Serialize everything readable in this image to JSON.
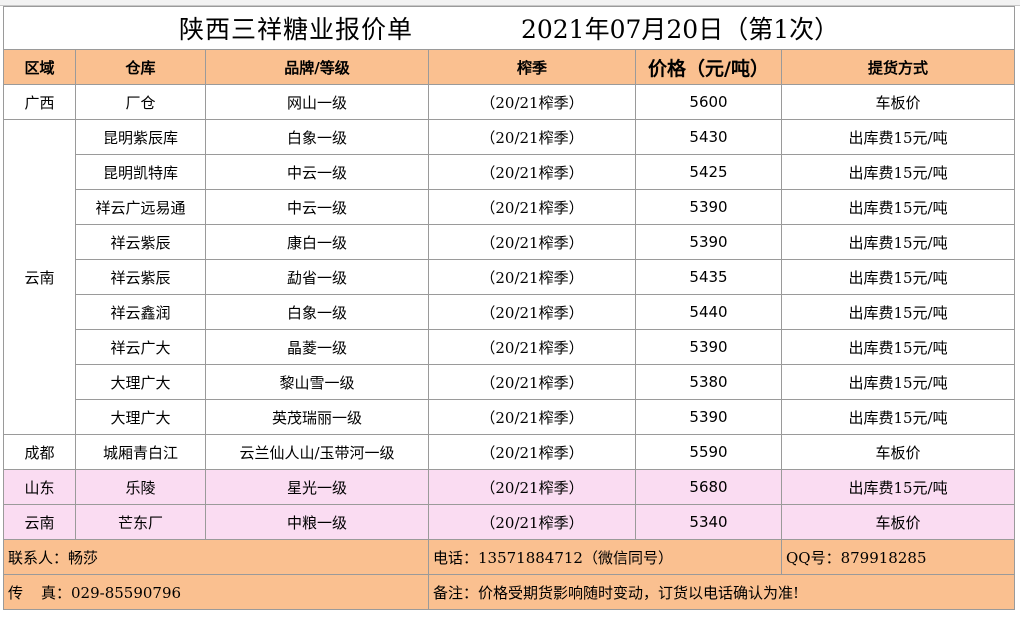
{
  "title": {
    "name": "陕西三祥糖业报价单",
    "date": "2021年07月20日（第1次）"
  },
  "headers": {
    "region": "区域",
    "warehouse": "仓库",
    "brand": "品牌/等级",
    "season": "榨季",
    "price": "价格（元/吨）",
    "delivery": "提货方式"
  },
  "regions": {
    "guangxi": "广西",
    "yunnan": "云南",
    "chengdu": "成都",
    "shandong": "山东",
    "yunnan2": "云南"
  },
  "rows": [
    {
      "warehouse": "厂仓",
      "brand": "网山一级",
      "season": "（20/21榨季）",
      "price": "5600",
      "delivery": "车板价"
    },
    {
      "warehouse": "昆明紫辰库",
      "brand": "白象一级",
      "season": "（20/21榨季）",
      "price": "5430",
      "delivery": "出库费15元/吨"
    },
    {
      "warehouse": "昆明凯特库",
      "brand": "中云一级",
      "season": "（20/21榨季）",
      "price": "5425",
      "delivery": "出库费15元/吨"
    },
    {
      "warehouse": "祥云广远易通",
      "brand": "中云一级",
      "season": "（20/21榨季）",
      "price": "5390",
      "delivery": "出库费15元/吨"
    },
    {
      "warehouse": "祥云紫辰",
      "brand": "康白一级",
      "season": "（20/21榨季）",
      "price": "5390",
      "delivery": "出库费15元/吨"
    },
    {
      "warehouse": "祥云紫辰",
      "brand": "勐省一级",
      "season": "（20/21榨季）",
      "price": "5435",
      "delivery": "出库费15元/吨"
    },
    {
      "warehouse": "祥云鑫润",
      "brand": "白象一级",
      "season": "（20/21榨季）",
      "price": "5440",
      "delivery": "出库费15元/吨"
    },
    {
      "warehouse": "祥云广大",
      "brand": "晶菱一级",
      "season": "（20/21榨季）",
      "price": "5390",
      "delivery": "出库费15元/吨"
    },
    {
      "warehouse": "大理广大",
      "brand": "黎山雪一级",
      "season": "（20/21榨季）",
      "price": "5380",
      "delivery": "出库费15元/吨"
    },
    {
      "warehouse": "大理广大",
      "brand": "英茂瑞丽一级",
      "season": "（20/21榨季）",
      "price": "5390",
      "delivery": "出库费15元/吨"
    },
    {
      "warehouse": "城厢青白江",
      "brand": "云兰仙人山/玉带河一级",
      "season": "（20/21榨季）",
      "price": "5590",
      "delivery": "车板价"
    },
    {
      "warehouse": "乐陵",
      "brand": "星光一级",
      "season": "（20/21榨季）",
      "price": "5680",
      "delivery": "出库费15元/吨"
    },
    {
      "warehouse": "芒东厂",
      "brand": "中粮一级",
      "season": "（20/21榨季）",
      "price": "5340",
      "delivery": "车板价"
    }
  ],
  "footer": {
    "contact": "联系人：畅莎",
    "phone": "电话：13571884712（微信同号）",
    "qq": "QQ号：879918285",
    "fax_label": "传",
    "fax_value": "真：029-85590796",
    "note": "备注：价格受期货影响随时变动，订货以电话确认为准!"
  },
  "colors": {
    "header_bg": "#fac090",
    "highlight_row_bg": "#fadcf2",
    "grid": "#9a9a9a"
  }
}
